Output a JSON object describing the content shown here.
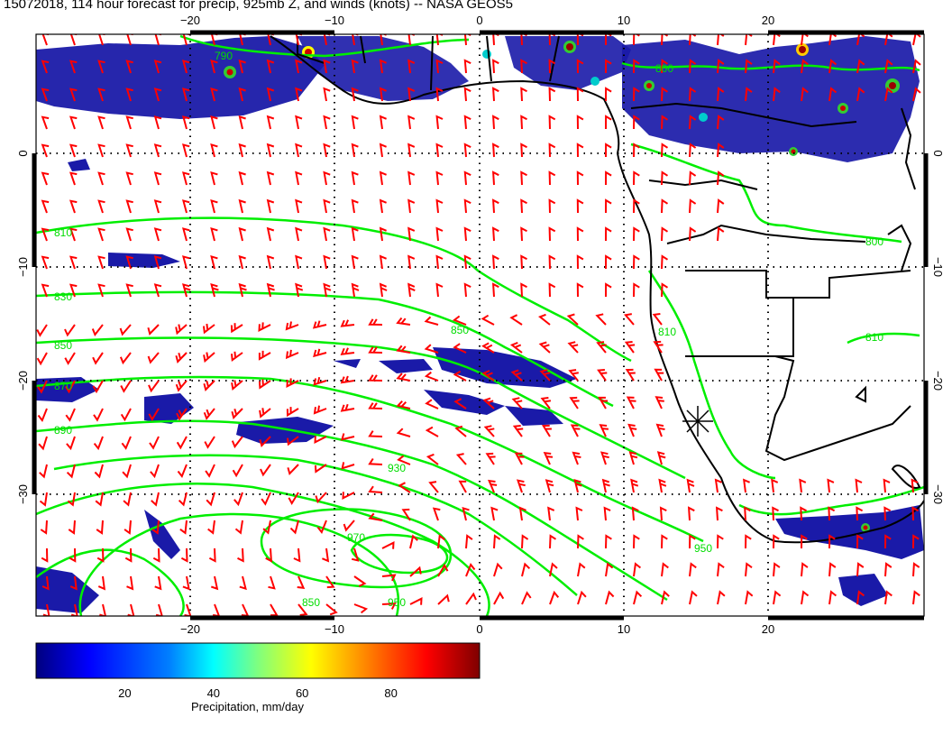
{
  "title": "15072018, 114 hour forecast for precip, 925mb Z, and winds (knots) -- NASA GEOS5",
  "axes": {
    "lon_ticks": [
      "−20",
      "−10",
      "0",
      "10",
      "20"
    ],
    "lat_ticks_left": [
      "0",
      "−10",
      "−20",
      "−30"
    ],
    "lat_ticks_right": [
      "0",
      "−10",
      "−20",
      "−30"
    ],
    "lon_range": [
      -30,
      31
    ],
    "lat_range": [
      -40,
      10
    ]
  },
  "colorbar": {
    "label": "Precipitation, mm/day",
    "ticks": [
      "20",
      "40",
      "60",
      "80"
    ],
    "tick_values": [
      20,
      40,
      60,
      80
    ],
    "range": [
      0,
      100
    ],
    "colors": [
      "#00007f",
      "#0000ff",
      "#007fff",
      "#00ffff",
      "#7fff7f",
      "#ffff00",
      "#ff7f00",
      "#ff0000",
      "#7f0000"
    ]
  },
  "contour_labels": [
    "790",
    "800",
    "810",
    "830",
    "850",
    "870",
    "890",
    "910",
    "930",
    "950",
    "970"
  ],
  "colors": {
    "wind_barbs": "#ff0000",
    "contours": "#00ee00",
    "coastline": "#000000",
    "precip_low": "#1a1aa8"
  },
  "marker": {
    "name": "station-star",
    "lon": 15,
    "lat": -23
  }
}
